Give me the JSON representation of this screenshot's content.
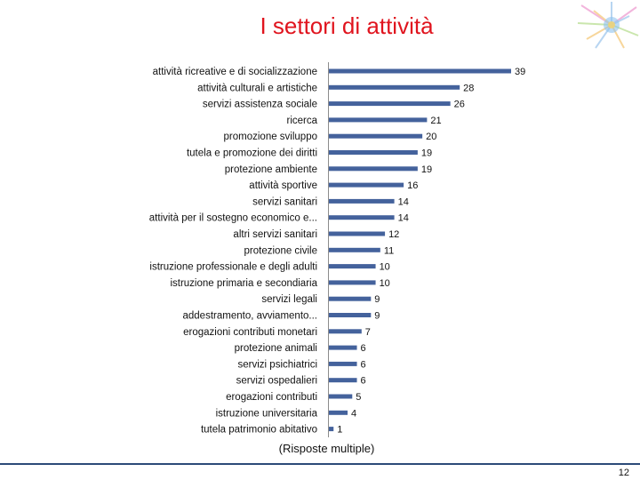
{
  "slide": {
    "title": "I settori di attività",
    "note": "(Risposte multiple)",
    "page_number": "12"
  },
  "colors": {
    "title": "#e0141e",
    "bar": "#44629c",
    "text": "#111111",
    "footer_line": "#2c4a78"
  },
  "chart_data": {
    "type": "bar",
    "orientation": "horizontal",
    "categories": [
      "attività ricreative e di socializzazione",
      "attività culturali e artistiche",
      "servizi assistenza sociale",
      "ricerca",
      "promozione sviluppo",
      "tutela e promozione dei diritti",
      "protezione ambiente",
      "attività sportive",
      "servizi sanitari",
      "attività per il sostegno economico e...",
      "altri servizi sanitari",
      "protezione civile",
      "istruzione professionale e degli adulti",
      "istruzione primaria e secondiaria",
      "servizi legali",
      "addestramento, avviamento...",
      "erogazioni contributi monetari",
      "protezione animali",
      "servizi psichiatrici",
      "servizi ospedalieri",
      "erogazioni contributi",
      "istruzione universitaria",
      "tutela patrimonio abitativo"
    ],
    "values": [
      39,
      28,
      26,
      21,
      20,
      19,
      19,
      16,
      14,
      14,
      12,
      11,
      10,
      10,
      9,
      9,
      7,
      6,
      6,
      6,
      5,
      4,
      1
    ],
    "xlim": [
      0,
      39
    ],
    "grid": false,
    "data_labels": true,
    "title": "",
    "xlabel": "",
    "ylabel": ""
  }
}
